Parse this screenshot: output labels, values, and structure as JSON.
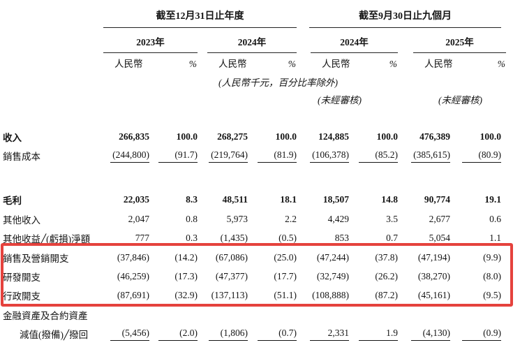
{
  "page": {
    "background": "#ffffff",
    "text_color": "#141414"
  },
  "highlight": {
    "border_color": "#e5423d",
    "covers_rows": [
      "銷售及營銷開支",
      "研發開支",
      "行政開支"
    ]
  },
  "table": {
    "period_groups": [
      {
        "label": "截至12月31日止年度"
      },
      {
        "label": "截至9月30日止九個月"
      }
    ],
    "year_columns": [
      {
        "label": "2023年"
      },
      {
        "label": "2024年"
      },
      {
        "label": "2024年"
      },
      {
        "label": "2025年"
      }
    ],
    "subheader": {
      "currency": "人民幣",
      "percent": "%"
    },
    "unit_note": "(人民幣千元，百分比率除外)",
    "unaudited_note": "(未經審核)",
    "rows": [
      {
        "label": "收入",
        "bold": true,
        "values": [
          "266,835",
          "100.0",
          "268,275",
          "100.0",
          "124,885",
          "100.0",
          "476,389",
          "100.0"
        ]
      },
      {
        "label": "銷售成本",
        "underline_after": true,
        "values": [
          "(244,800)",
          "(91.7)",
          "(219,764)",
          "(81.9)",
          "(106,378)",
          "(85.2)",
          "(385,615)",
          "(80.9)"
        ]
      },
      {
        "label": "毛利",
        "bold": true,
        "values": [
          "22,035",
          "8.3",
          "48,511",
          "18.1",
          "18,507",
          "14.8",
          "90,774",
          "19.1"
        ]
      },
      {
        "label": "其他收入",
        "values": [
          "2,047",
          "0.8",
          "5,973",
          "2.2",
          "4,429",
          "3.5",
          "2,677",
          "0.6"
        ]
      },
      {
        "label": "其他收益╱(虧損)淨額",
        "values": [
          "777",
          "0.3",
          "(1,435)",
          "(0.5)",
          "853",
          "0.7",
          "5,054",
          "1.1"
        ]
      },
      {
        "label": "銷售及營銷開支",
        "highlighted": true,
        "values": [
          "(37,846)",
          "(14.2)",
          "(67,086)",
          "(25.0)",
          "(47,244)",
          "(37.8)",
          "(47,194)",
          "(9.9)"
        ]
      },
      {
        "label": "研發開支",
        "highlighted": true,
        "values": [
          "(46,259)",
          "(17.3)",
          "(47,377)",
          "(17.7)",
          "(32,749)",
          "(26.2)",
          "(38,270)",
          "(8.0)"
        ]
      },
      {
        "label": "行政開支",
        "highlighted": true,
        "values": [
          "(87,691)",
          "(32.9)",
          "(137,113)",
          "(51.1)",
          "(108,888)",
          "(87.2)",
          "(45,161)",
          "(9.5)"
        ]
      },
      {
        "label": "金融資產及合約資產",
        "label2": "減值(撥備)╱撥回",
        "underline_after": true,
        "values": [
          "(5,456)",
          "(2.0)",
          "(1,806)",
          "(0.7)",
          "2,331",
          "1.9",
          "(4,130)",
          "(0.9)"
        ]
      }
    ]
  }
}
